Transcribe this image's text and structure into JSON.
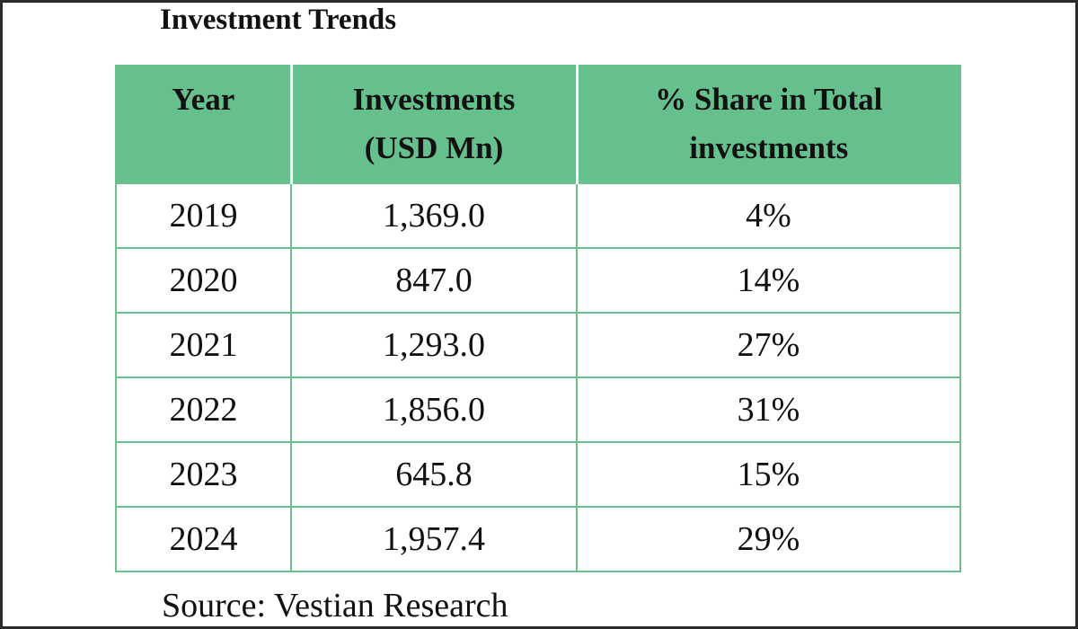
{
  "title": "Investment Trends",
  "table": {
    "headers": [
      "Year",
      "Investments (USD Mn)",
      "% Share in Total investments"
    ],
    "header_lines": [
      [
        "Year"
      ],
      [
        "Investments",
        "(USD Mn)"
      ],
      [
        "% Share in Total",
        "investments"
      ]
    ],
    "rows": [
      [
        "2019",
        "1,369.0",
        "4%"
      ],
      [
        "2020",
        "847.0",
        "14%"
      ],
      [
        "2021",
        "1,293.0",
        "27%"
      ],
      [
        "2022",
        "1,856.0",
        "31%"
      ],
      [
        "2023",
        "645.8",
        "15%"
      ],
      [
        "2024",
        "1,957.4",
        "29%"
      ]
    ]
  },
  "source": "Source: Vestian Research",
  "colors": {
    "header_bg": "#66c08e",
    "grid": "#6dbf8e"
  }
}
